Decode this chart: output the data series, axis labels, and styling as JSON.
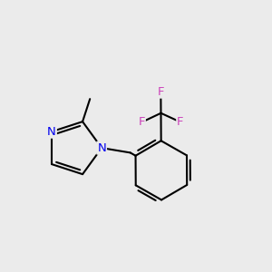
{
  "background_color": "#ebebeb",
  "bond_color": "#000000",
  "bond_width": 1.5,
  "N_color": "#0000ee",
  "F_color": "#cc44bb",
  "figsize": [
    3.0,
    3.0
  ],
  "dpi": 100,
  "xlim": [
    -2.8,
    2.8
  ],
  "ylim": [
    -2.2,
    2.8
  ]
}
